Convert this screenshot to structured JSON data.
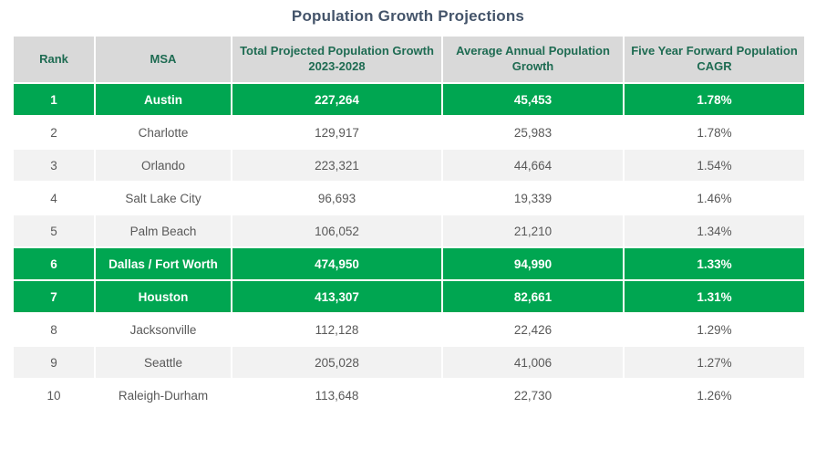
{
  "title": "Population Growth Projections",
  "colors": {
    "highlight_green": "#00A651",
    "header_bg": "#D9D9D9",
    "header_text": "#1E6B52",
    "row_alt_bg": "#F2F2F2",
    "body_text": "#595959",
    "title_text": "#44546A"
  },
  "chart_data": {
    "type": "table",
    "title": "Population Growth Projections",
    "columns": [
      "Rank",
      "MSA",
      "Total Projected Population Growth 2023-2028",
      "Average Annual Population Growth",
      "Five Year Forward Population CAGR"
    ],
    "highlight_ranks": [
      1,
      6,
      7
    ],
    "rows": [
      {
        "rank": "1",
        "msa": "Austin",
        "total_growth": "227,264",
        "avg_annual": "45,453",
        "cagr": "1.78%",
        "highlight": true
      },
      {
        "rank": "2",
        "msa": "Charlotte",
        "total_growth": "129,917",
        "avg_annual": "25,983",
        "cagr": "1.78%",
        "highlight": false
      },
      {
        "rank": "3",
        "msa": "Orlando",
        "total_growth": "223,321",
        "avg_annual": "44,664",
        "cagr": "1.54%",
        "highlight": false
      },
      {
        "rank": "4",
        "msa": "Salt Lake City",
        "total_growth": "96,693",
        "avg_annual": "19,339",
        "cagr": "1.46%",
        "highlight": false
      },
      {
        "rank": "5",
        "msa": "Palm Beach",
        "total_growth": "106,052",
        "avg_annual": "21,210",
        "cagr": "1.34%",
        "highlight": false
      },
      {
        "rank": "6",
        "msa": "Dallas / Fort Worth",
        "total_growth": "474,950",
        "avg_annual": "94,990",
        "cagr": "1.33%",
        "highlight": true
      },
      {
        "rank": "7",
        "msa": "Houston",
        "total_growth": "413,307",
        "avg_annual": "82,661",
        "cagr": "1.31%",
        "highlight": true
      },
      {
        "rank": "8",
        "msa": "Jacksonville",
        "total_growth": "112,128",
        "avg_annual": "22,426",
        "cagr": "1.29%",
        "highlight": false
      },
      {
        "rank": "9",
        "msa": "Seattle",
        "total_growth": "205,028",
        "avg_annual": "41,006",
        "cagr": "1.27%",
        "highlight": false
      },
      {
        "rank": "10",
        "msa": "Raleigh-Durham",
        "total_growth": "113,648",
        "avg_annual": "22,730",
        "cagr": "1.26%",
        "highlight": false
      }
    ]
  }
}
